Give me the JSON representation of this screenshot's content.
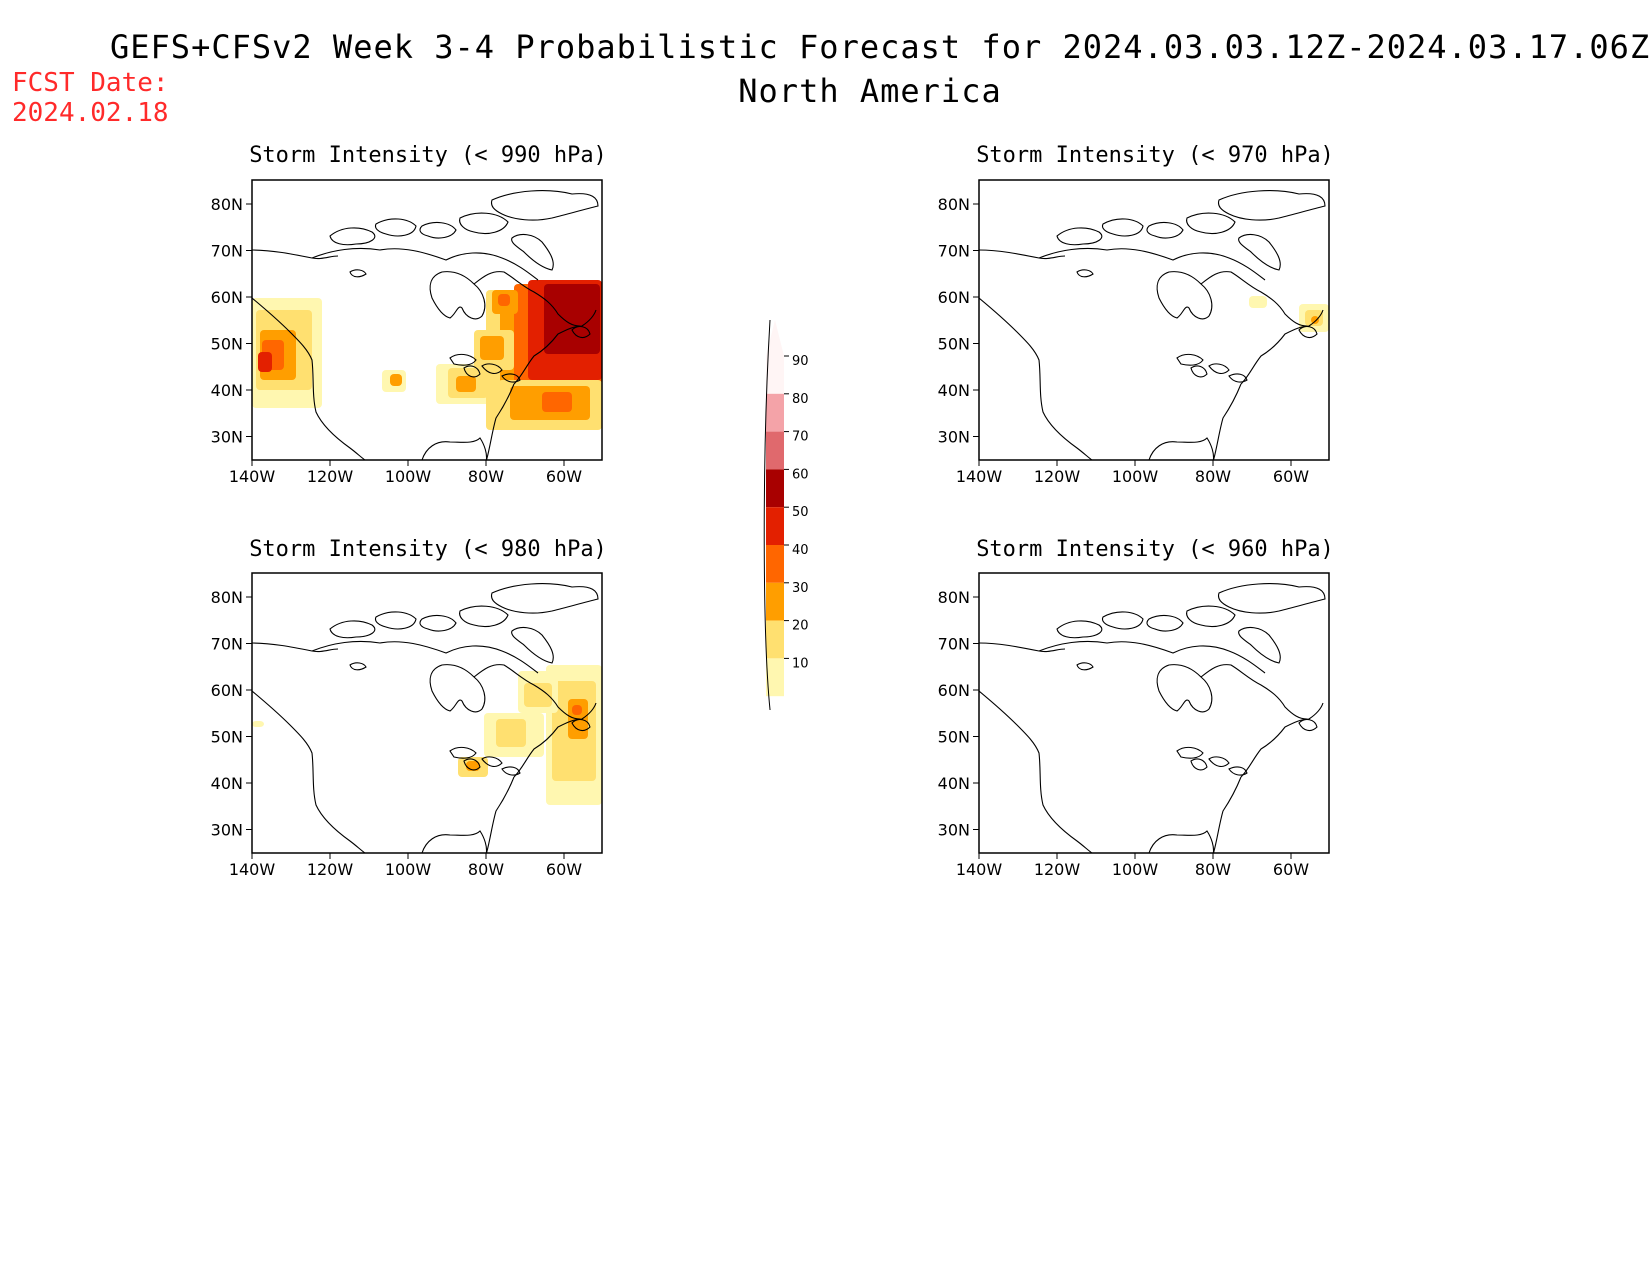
{
  "header": {
    "title_line1": "GEFS+CFSv2 Week 3-4 Probabilistic Forecast for 2024.03.03.12Z-2024.03.17.06Z",
    "title_line2": "North America",
    "fcst_label": "FCST Date:",
    "fcst_date": "2024.02.18"
  },
  "axes": {
    "lat_ticks": [
      "80N",
      "70N",
      "60N",
      "50N",
      "40N",
      "30N"
    ],
    "lon_ticks": [
      "140W",
      "120W",
      "100W",
      "80W",
      "60W"
    ]
  },
  "panels": [
    {
      "id": "p990",
      "title": "Storm Intensity (< 990 hPa)"
    },
    {
      "id": "p970",
      "title": "Storm Intensity (< 970 hPa)"
    },
    {
      "id": "p980",
      "title": "Storm Intensity (< 980 hPa)"
    },
    {
      "id": "p960",
      "title": "Storm Intensity (< 960 hPa)"
    }
  ],
  "colorbar": {
    "labels": [
      "90",
      "80",
      "70",
      "60",
      "50",
      "40",
      "30",
      "20",
      "10"
    ],
    "colors": [
      "#fff5f5",
      "#f4a3a8",
      "#e0696d",
      "#a80000",
      "#e32000",
      "#ff6600",
      "#ff9e00",
      "#ffe070",
      "#fff7b0"
    ]
  },
  "colors": {
    "fcst": "#ff2a2a",
    "land_outline": "#000000"
  }
}
